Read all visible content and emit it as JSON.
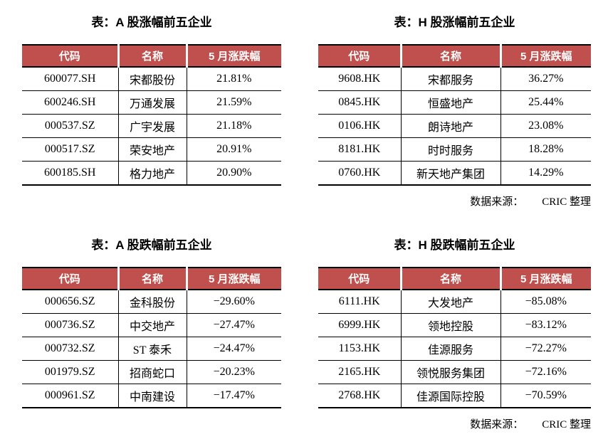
{
  "page": {
    "accent": "#c0504d",
    "border_color": "#000000",
    "background": "#ffffff"
  },
  "source_note": {
    "label": "数据来源：",
    "value": "CRIC 整理"
  },
  "tables": [
    {
      "title": "表：A 股涨幅前五企业",
      "columns": [
        "代码",
        "名称",
        "5 月涨跌幅"
      ],
      "rows": [
        [
          "600077.SH",
          "宋都股份",
          "21.81%"
        ],
        [
          "600246.SH",
          "万通发展",
          "21.59%"
        ],
        [
          "000537.SZ",
          "广宇发展",
          "21.18%"
        ],
        [
          "000517.SZ",
          "荣安地产",
          "20.91%"
        ],
        [
          "600185.SH",
          "格力地产",
          "20.90%"
        ]
      ]
    },
    {
      "title": "表：H 股涨幅前五企业",
      "columns": [
        "代码",
        "名称",
        "5 月涨跌幅"
      ],
      "rows": [
        [
          "9608.HK",
          "宋都服务",
          "36.27%"
        ],
        [
          "0845.HK",
          "恒盛地产",
          "25.44%"
        ],
        [
          "0106.HK",
          "朗诗地产",
          "23.08%"
        ],
        [
          "8181.HK",
          "时时服务",
          "18.28%"
        ],
        [
          "0760.HK",
          "新天地产集团",
          "14.29%"
        ]
      ]
    },
    {
      "title": "表：A 股跌幅前五企业",
      "columns": [
        "代码",
        "名称",
        "5 月涨跌幅"
      ],
      "rows": [
        [
          "000656.SZ",
          "金科股份",
          "−29.60%"
        ],
        [
          "000736.SZ",
          "中交地产",
          "−27.47%"
        ],
        [
          "000732.SZ",
          "ST 泰禾",
          "−24.47%"
        ],
        [
          "001979.SZ",
          "招商蛇口",
          "−20.23%"
        ],
        [
          "000961.SZ",
          "中南建设",
          "−17.47%"
        ]
      ]
    },
    {
      "title": "表：H 股跌幅前五企业",
      "columns": [
        "代码",
        "名称",
        "5 月涨跌幅"
      ],
      "rows": [
        [
          "6111.HK",
          "大发地产",
          "−85.08%"
        ],
        [
          "6999.HK",
          "领地控股",
          "−83.12%"
        ],
        [
          "1153.HK",
          "佳源服务",
          "−72.27%"
        ],
        [
          "2165.HK",
          "领悦服务集团",
          "−72.16%"
        ],
        [
          "2768.HK",
          "佳源国际控股",
          "−70.59%"
        ]
      ]
    }
  ]
}
